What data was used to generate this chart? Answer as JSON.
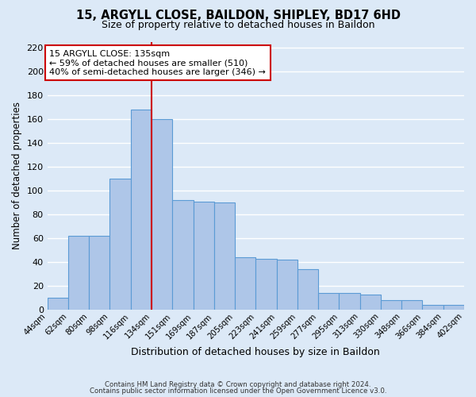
{
  "title": "15, ARGYLL CLOSE, BAILDON, SHIPLEY, BD17 6HD",
  "subtitle": "Size of property relative to detached houses in Baildon",
  "xlabel": "Distribution of detached houses by size in Baildon",
  "ylabel": "Number of detached properties",
  "bar_values": [
    10,
    62,
    62,
    110,
    168,
    160,
    92,
    91,
    90,
    44,
    43,
    42,
    34,
    14,
    14,
    13,
    8,
    8,
    4,
    4
  ],
  "bar_labels": [
    "44sqm",
    "62sqm",
    "80sqm",
    "98sqm",
    "116sqm",
    "134sqm",
    "151sqm",
    "169sqm",
    "187sqm",
    "205sqm",
    "223sqm",
    "241sqm",
    "259sqm",
    "277sqm",
    "295sqm",
    "313sqm",
    "330sqm",
    "348sqm",
    "366sqm",
    "384sqm",
    "402sqm"
  ],
  "bar_color": "#aec6e8",
  "bar_edge_color": "#5b9bd5",
  "vline_x": 5,
  "vline_color": "#cc0000",
  "annotation_title": "15 ARGYLL CLOSE: 135sqm",
  "annotation_line1": "← 59% of detached houses are smaller (510)",
  "annotation_line2": "40% of semi-detached houses are larger (346) →",
  "annotation_box_color": "#ffffff",
  "annotation_box_edge": "#cc0000",
  "ylim": [
    0,
    225
  ],
  "yticks": [
    0,
    20,
    40,
    60,
    80,
    100,
    120,
    140,
    160,
    180,
    200,
    220
  ],
  "footer1": "Contains HM Land Registry data © Crown copyright and database right 2024.",
  "footer2": "Contains public sector information licensed under the Open Government Licence v3.0.",
  "bg_color": "#dce9f7",
  "plot_bg_color": "#dce9f7",
  "grid_color": "#ffffff"
}
